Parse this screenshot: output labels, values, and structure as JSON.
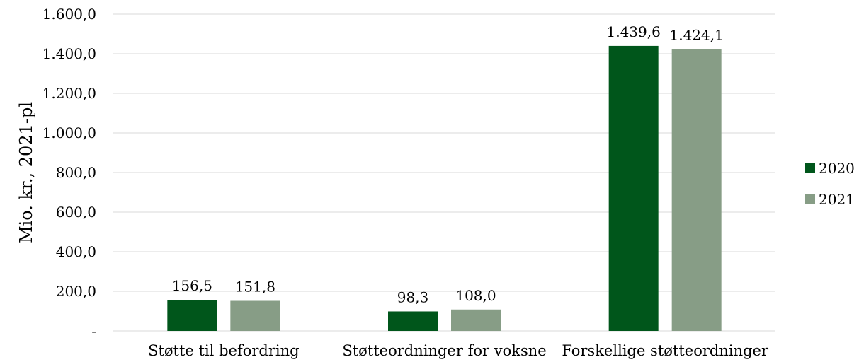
{
  "chart_data": {
    "type": "bar",
    "title": "",
    "xlabel": "",
    "ylabel": "Mio. kr., 2021-pl",
    "categories": [
      "Støtte til befordring",
      "Støtteordninger for voksne",
      "Forskellige støtteordninger"
    ],
    "series": [
      {
        "name": "2020",
        "color": "#00561b",
        "values": [
          156.5,
          98.3,
          1439.6
        ],
        "labels": [
          "156,5",
          "98,3",
          "1.439,6"
        ]
      },
      {
        "name": "2021",
        "color": "#879d86",
        "values": [
          151.8,
          108.0,
          1424.1
        ],
        "labels": [
          "151,8",
          "108,0",
          "1.424,1"
        ]
      }
    ],
    "ylim": [
      0,
      1600
    ],
    "yticks": [
      0,
      200,
      400,
      600,
      800,
      1000,
      1200,
      1400,
      1600
    ],
    "ytick_labels": [
      "-",
      "200,0",
      "400,0",
      "600,0",
      "800,0",
      "1.000,0",
      "1.200,0",
      "1.400,0",
      "1.600,0"
    ],
    "grid": true,
    "legend_position": "right"
  }
}
